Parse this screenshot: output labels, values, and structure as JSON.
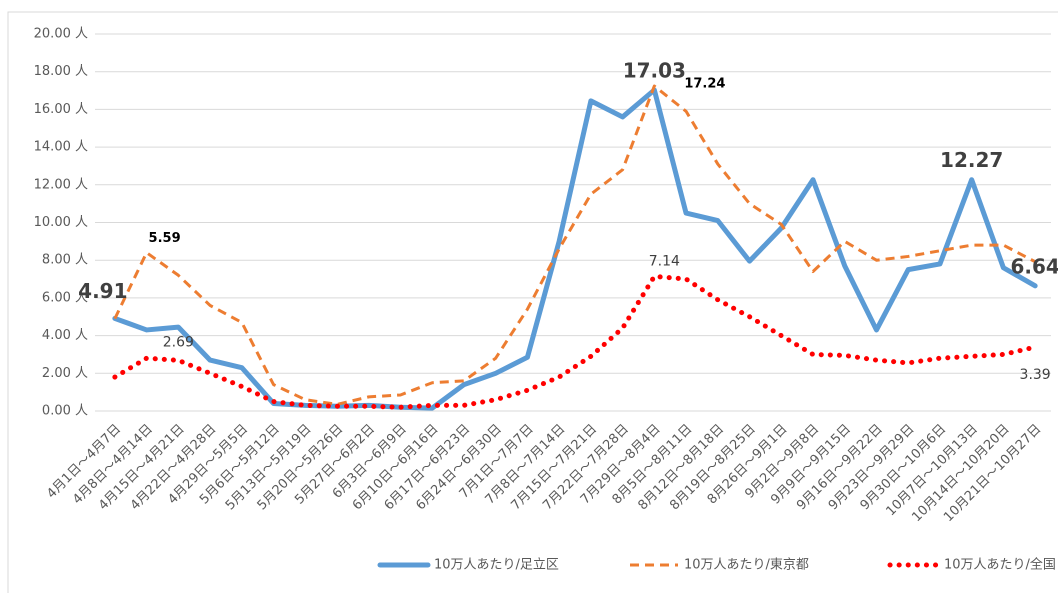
{
  "chart_data": {
    "type": "line",
    "categories": [
      "4月1日～4月7日",
      "4月8日～4月14日",
      "4月15日～4月21日",
      "4月22日～4月28日",
      "4月29日～5月5日",
      "5月6日～5月12日",
      "5月13日～5月19日",
      "5月20日～5月26日",
      "5月27日～6月2日",
      "6月3日～6月9日",
      "6月10日～6月16日",
      "6月17日～6月23日",
      "6月24日～6月30日",
      "7月1日～7月7日",
      "7月8日～7月14日",
      "7月15日～7月21日",
      "7月22日～7月28日",
      "7月29日～8月4日",
      "8月5日～8月11日",
      "8月12日～8月18日",
      "8月19日～8月25日",
      "8月26日～9月1日",
      "9月2日～9月8日",
      "9月9日～9月15日",
      "9月16日～9月22日",
      "9月23日～9月29日",
      "9月30日～10月6日",
      "10月7日～10月13日",
      "10月14日～10月20日",
      "10月21日～10月27日"
    ],
    "series": [
      {
        "name": "10万人あたり/足立区",
        "color": "#5b9bd5",
        "values": [
          4.91,
          4.3,
          4.45,
          2.7,
          2.3,
          0.4,
          0.3,
          0.25,
          0.3,
          0.2,
          0.15,
          1.4,
          2.0,
          2.85,
          9.0,
          16.45,
          15.6,
          17.03,
          10.5,
          10.1,
          7.95,
          9.7,
          12.27,
          7.7,
          4.3,
          7.5,
          7.8,
          12.27,
          7.6,
          6.64
        ],
        "value_labels": [
          "4.91",
          null,
          null,
          null,
          null,
          null,
          null,
          null,
          null,
          null,
          null,
          null,
          null,
          null,
          null,
          null,
          null,
          "17.03",
          null,
          null,
          null,
          null,
          null,
          null,
          null,
          null,
          null,
          "12.27",
          null,
          "6.64"
        ]
      },
      {
        "name": "10万人あたり/東京都",
        "color": "#ed7d31",
        "values": [
          4.9,
          8.4,
          7.2,
          5.6,
          4.7,
          1.4,
          0.6,
          0.35,
          0.75,
          0.85,
          1.5,
          1.6,
          2.8,
          5.4,
          8.6,
          11.5,
          12.8,
          17.24,
          15.9,
          13.1,
          11.0,
          9.9,
          7.4,
          9.0,
          8.0,
          8.2,
          8.5,
          8.8,
          8.8,
          7.92
        ],
        "value_labels": [
          null,
          null,
          null,
          null,
          null,
          null,
          null,
          null,
          null,
          null,
          null,
          null,
          null,
          null,
          null,
          null,
          null,
          "17.24",
          null,
          null,
          null,
          null,
          null,
          null,
          null,
          null,
          null,
          null,
          null,
          "7.92"
        ]
      },
      {
        "name": "10万人あたり/全国",
        "color": "#ff0000",
        "values": [
          1.8,
          2.8,
          2.69,
          2.0,
          1.3,
          0.5,
          0.3,
          0.25,
          0.25,
          0.2,
          0.3,
          0.3,
          0.6,
          1.1,
          1.8,
          2.9,
          4.4,
          7.14,
          7.0,
          5.9,
          5.0,
          4.0,
          3.0,
          2.95,
          2.7,
          2.55,
          2.8,
          2.9,
          3.0,
          3.39
        ],
        "value_labels": [
          null,
          null,
          "2.69",
          null,
          null,
          null,
          null,
          null,
          null,
          null,
          null,
          null,
          null,
          null,
          null,
          null,
          null,
          "7.14",
          null,
          null,
          null,
          null,
          null,
          null,
          null,
          null,
          null,
          null,
          null,
          "3.39"
        ]
      }
    ],
    "annotations": [
      "5.59"
    ],
    "ylim": [
      0,
      20
    ],
    "yticks": [
      {
        "value": 0,
        "label": "0.00 人"
      },
      {
        "value": 2,
        "label": "2.00 人"
      },
      {
        "value": 4,
        "label": "4.00 人"
      },
      {
        "value": 6,
        "label": "6.00 人"
      },
      {
        "value": 8,
        "label": "8.00 人"
      },
      {
        "value": 10,
        "label": "10.00 人"
      },
      {
        "value": 12,
        "label": "12.00 人"
      },
      {
        "value": 14,
        "label": "14.00 人"
      },
      {
        "value": 16,
        "label": "16.00 人"
      },
      {
        "value": 18,
        "label": "18.00 人"
      },
      {
        "value": 20,
        "label": "20.00 人"
      }
    ],
    "grid": true,
    "legend": "bottom"
  }
}
